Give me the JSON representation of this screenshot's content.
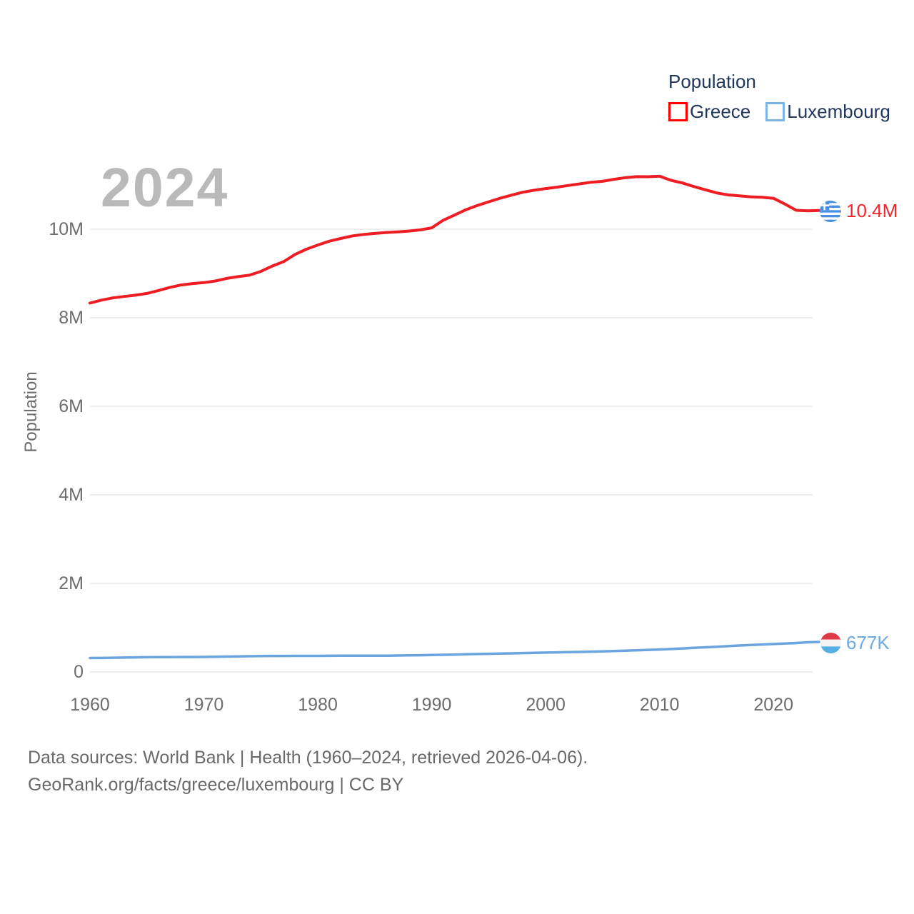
{
  "legend": {
    "title": "Population",
    "items": [
      {
        "label": "Greece"
      },
      {
        "label": "Luxembourg"
      }
    ]
  },
  "chart": {
    "watermark": "2024",
    "ylabel": "Population"
  },
  "end_labels": {
    "greece": "10.4M",
    "luxembourg": "677K"
  },
  "footer": {
    "line1": "Data sources: World Bank | Health (1960–2024, retrieved 2026-04-06).",
    "line2": "GeoRank.org/facts/greece/luxembourg | CC BY"
  },
  "colors": {
    "greece_line": "#ee1c23",
    "greece_box": "#fe0000",
    "greece_label": "#f2262c",
    "luxembourg_line": "#6aa5e0",
    "luxembourg_box": "#7cb3e9",
    "luxembourg_label": "#6fa9e2",
    "legend_text": "#21375b",
    "axis_text": "#6d6d6d",
    "grid": "#e7e7e7",
    "watermark": "#b9b9b9",
    "footer_text": "#696969"
  },
  "chart_data": {
    "type": "line",
    "title": "Population",
    "xlabel": "",
    "ylabel": "Population",
    "watermark_year": "2024",
    "grid": "horizontal",
    "legend_position": "top-right",
    "xlim": [
      1960,
      2024
    ],
    "ylim": [
      0,
      11500000
    ],
    "x_ticks": [
      1960,
      1970,
      1980,
      1990,
      2000,
      2010,
      2020
    ],
    "y_ticks": [
      {
        "value": 0,
        "label": "0"
      },
      {
        "value": 2000000,
        "label": "2M"
      },
      {
        "value": 4000000,
        "label": "4M"
      },
      {
        "value": 6000000,
        "label": "6M"
      },
      {
        "value": 8000000,
        "label": "8M"
      },
      {
        "value": 10000000,
        "label": "10M"
      }
    ],
    "x": [
      1960,
      1961,
      1962,
      1963,
      1964,
      1965,
      1966,
      1967,
      1968,
      1969,
      1970,
      1971,
      1972,
      1973,
      1974,
      1975,
      1976,
      1977,
      1978,
      1979,
      1980,
      1981,
      1982,
      1983,
      1984,
      1985,
      1986,
      1987,
      1988,
      1989,
      1990,
      1991,
      1992,
      1993,
      1994,
      1995,
      1996,
      1997,
      1998,
      1999,
      2000,
      2001,
      2002,
      2003,
      2004,
      2005,
      2006,
      2007,
      2008,
      2009,
      2010,
      2011,
      2012,
      2013,
      2014,
      2015,
      2016,
      2017,
      2018,
      2019,
      2020,
      2021,
      2022,
      2023,
      2024
    ],
    "series": [
      {
        "name": "Greece",
        "color": "#ee1c23",
        "end_label": "10.4M",
        "values": [
          8332000,
          8398000,
          8448000,
          8480000,
          8510000,
          8550000,
          8614000,
          8684000,
          8741000,
          8773000,
          8793000,
          8831000,
          8889000,
          8929000,
          8962000,
          9047000,
          9167000,
          9268000,
          9430000,
          9548000,
          9643000,
          9729000,
          9790000,
          9847000,
          9880000,
          9905000,
          9925000,
          9940000,
          9958000,
          9985000,
          10030000,
          10200000,
          10320000,
          10440000,
          10535000,
          10620000,
          10700000,
          10770000,
          10835000,
          10880000,
          10917000,
          10950000,
          10988000,
          11024000,
          11061000,
          11083000,
          11128000,
          11164000,
          11187000,
          11186000,
          11196000,
          11105000,
          11045000,
          10965000,
          10892000,
          10821000,
          10776000,
          10755000,
          10733000,
          10722000,
          10699000,
          10569000,
          10427000,
          10414000,
          10423000
        ]
      },
      {
        "name": "Luxembourg",
        "color": "#6aa5e0",
        "end_label": "677K",
        "values": [
          313970,
          316900,
          320600,
          324900,
          328500,
          331500,
          334800,
          335900,
          336500,
          337500,
          339200,
          342400,
          346600,
          350400,
          355300,
          359000,
          361400,
          361800,
          362300,
          362900,
          363700,
          365200,
          365900,
          366200,
          366900,
          367200,
          368400,
          370900,
          374000,
          377600,
          381900,
          387000,
          392500,
          398300,
          404300,
          409700,
          414200,
          419500,
          425000,
          430500,
          436300,
          442000,
          446200,
          451600,
          458100,
          465200,
          472600,
          480000,
          488700,
          497800,
          507000,
          518300,
          531000,
          543400,
          556300,
          569600,
          582000,
          596300,
          608000,
          620000,
          630400,
          640100,
          653100,
          668600,
          677000
        ]
      }
    ]
  }
}
